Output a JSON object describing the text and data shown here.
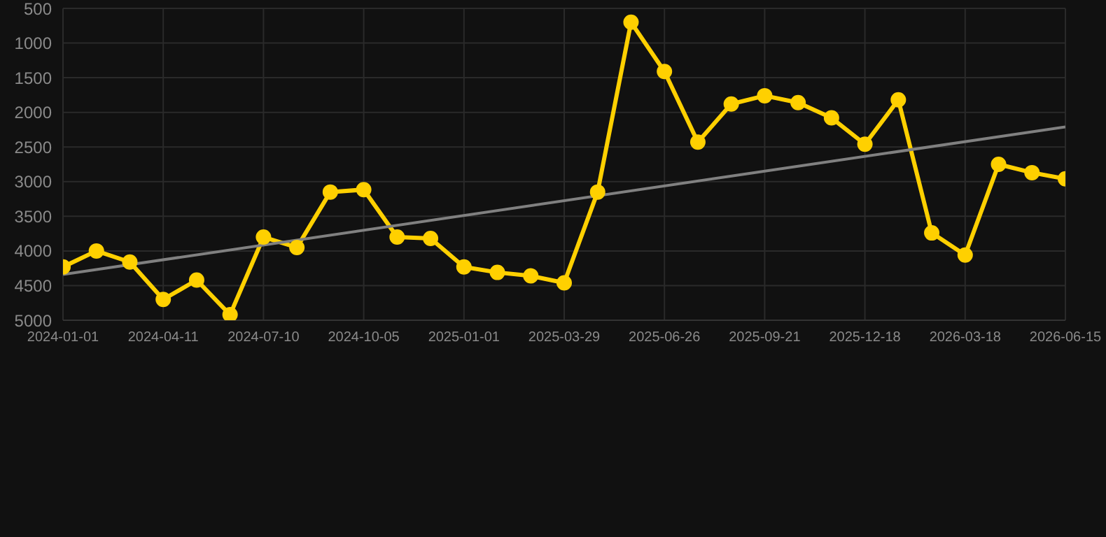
{
  "chart_data": {
    "type": "line",
    "categories": [
      "2024-01-01",
      null,
      null,
      "2024-04-11",
      null,
      null,
      "2024-07-10",
      null,
      null,
      "2024-10-05",
      null,
      null,
      "2025-01-01",
      null,
      null,
      "2025-03-29",
      null,
      null,
      "2025-06-26",
      null,
      null,
      "2025-09-21",
      null,
      null,
      "2025-12-18",
      null,
      null,
      "2026-03-18",
      null,
      null,
      "2026-06-15"
    ],
    "series": [
      {
        "color": "#ffd000",
        "marker": "circle",
        "values": [
          4230,
          4000,
          4160,
          4700,
          4420,
          4920,
          3800,
          3950,
          3150,
          3115,
          3800,
          3820,
          4230,
          4310,
          4360,
          4460,
          3150,
          700,
          1410,
          2430,
          1880,
          1760,
          1860,
          2080,
          2460,
          1820,
          3740,
          4060,
          2750,
          2870,
          2960
        ]
      },
      {
        "type": "line",
        "color": "#808080",
        "marker": "none",
        "values": [
          4340,
          null,
          null,
          null,
          null,
          null,
          null,
          null,
          null,
          null,
          null,
          null,
          null,
          null,
          null,
          null,
          null,
          null,
          null,
          null,
          null,
          null,
          null,
          null,
          null,
          null,
          null,
          null,
          null,
          null,
          2210
        ]
      }
    ],
    "ylim": [
      5000,
      500
    ],
    "yticks": [
      500,
      1000,
      1500,
      2000,
      2500,
      3000,
      3500,
      4000,
      4500,
      5000
    ],
    "grid": true
  }
}
